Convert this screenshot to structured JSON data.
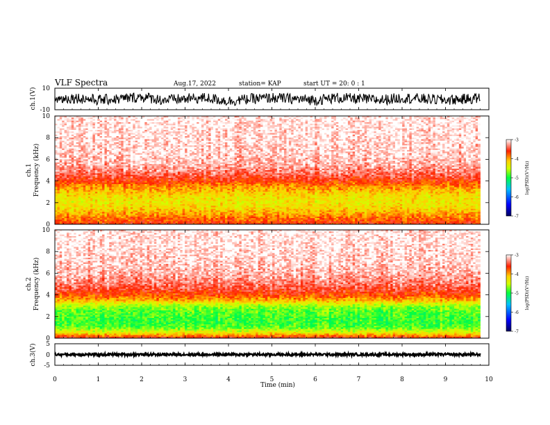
{
  "header": {
    "title": "VLF Spectra",
    "date": "Aug.17, 2022",
    "station": "station= KAP",
    "start": "start  UT  =   20: 0  : 1"
  },
  "colorbar": {
    "label": "log(PSD)(V²/Hz)",
    "ticks": [
      "-3",
      "-4",
      "-5",
      "-6",
      "-7"
    ]
  },
  "chart_data": [
    {
      "type": "line",
      "panel": "ch1-waveform",
      "ylabel": "ch.1(V)",
      "ylim": [
        -10,
        10
      ],
      "ytick_labels": [
        "10",
        "-10"
      ],
      "x": [
        0,
        0.5,
        1,
        1.5,
        2,
        2.5,
        3,
        3.5,
        4,
        4.5,
        5,
        5.5,
        6,
        6.5,
        7,
        7.5,
        8,
        8.5,
        9,
        9.5,
        9.8
      ],
      "y": [
        0,
        1,
        -1,
        0,
        2,
        -1,
        0,
        1,
        -2,
        0,
        1,
        0,
        -1,
        1,
        0,
        -1,
        1,
        0,
        -1,
        0,
        1
      ],
      "band": [
        -5,
        5
      ]
    },
    {
      "type": "heatmap",
      "panel": "ch1-spectrogram",
      "ylabel": "ch.1\nFrequency (kHz)",
      "ylim": [
        0,
        10
      ],
      "ytick_labels": [
        "0",
        "2",
        "4",
        "6",
        "8",
        "10"
      ],
      "freq_khz": [
        0,
        0.5,
        1,
        1.5,
        2,
        2.5,
        3,
        3.5,
        4,
        4.5,
        5,
        5.5,
        6,
        7,
        8,
        9,
        10
      ],
      "log_psd": [
        -3.6,
        -3.8,
        -4.0,
        -4.2,
        -4.3,
        -4.25,
        -4.1,
        -3.9,
        -3.65,
        -3.45,
        -3.3,
        -3.2,
        -3.15,
        -3.1,
        -3.08,
        -3.05,
        -3.04
      ]
    },
    {
      "type": "heatmap",
      "panel": "ch2-spectrogram",
      "ylabel": "ch.2\nFrequency (kHz)",
      "ylim": [
        0,
        10
      ],
      "ytick_labels": [
        "0",
        "2",
        "4",
        "6",
        "8",
        "10"
      ],
      "freq_khz": [
        0,
        0.5,
        1,
        1.5,
        2,
        2.5,
        3,
        3.5,
        4,
        4.5,
        5,
        6,
        7,
        8,
        9,
        10
      ],
      "log_psd": [
        -3.5,
        -4.3,
        -4.8,
        -4.9,
        -4.85,
        -4.8,
        -4.6,
        -4.0,
        -3.7,
        -3.5,
        -3.35,
        -3.2,
        -3.12,
        -3.08,
        -3.05,
        -3.04
      ]
    },
    {
      "type": "line",
      "panel": "ch3-waveform",
      "ylabel": "ch.3(V)",
      "ylim": [
        -5,
        5
      ],
      "ytick_labels": [
        "5",
        "0",
        "-5"
      ],
      "x": [
        0,
        9.8
      ],
      "y": [
        0,
        0
      ],
      "band": [
        -0.6,
        0.6
      ]
    }
  ],
  "xaxis": {
    "label": "Time (min)",
    "xlim": [
      0,
      10
    ],
    "tick_labels": [
      "0",
      "1",
      "2",
      "3",
      "4",
      "5",
      "6",
      "7",
      "8",
      "9",
      "10"
    ]
  }
}
